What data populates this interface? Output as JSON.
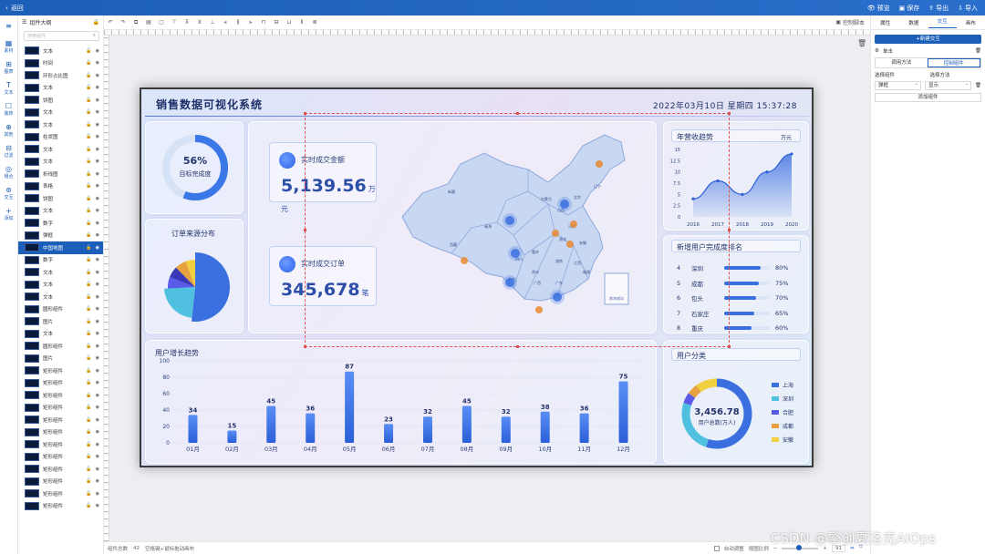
{
  "app": {
    "back_label": "返回",
    "tools": [
      "预览",
      "保存",
      "导出",
      "导入"
    ]
  },
  "leftnav": [
    {
      "icon": "≡",
      "label": ""
    },
    {
      "icon": "▦",
      "label": "素材"
    },
    {
      "icon": "⊞",
      "label": "图表"
    },
    {
      "icon": "T",
      "label": "文本"
    },
    {
      "icon": "☐",
      "label": "装饰"
    },
    {
      "icon": "⊕",
      "label": "其他"
    },
    {
      "icon": "⊟",
      "label": "过滤"
    },
    {
      "icon": "◎",
      "label": "组合"
    },
    {
      "icon": "⊛",
      "label": "交互"
    },
    {
      "icon": "+",
      "label": "添加"
    }
  ],
  "layers": {
    "title": "组件大纲",
    "search_placeholder": "搜索组件",
    "items": [
      "文本",
      "时间",
      "环形占比图",
      "文本",
      "饼图",
      "文本",
      "文本",
      "柱状图",
      "文本",
      "文本",
      "折线图",
      "表格",
      "饼图",
      "文本",
      "数字",
      "弹框",
      "中国地图",
      "数字",
      "文本",
      "文本",
      "文本",
      "圆形组件",
      "图片",
      "文本",
      "圆形组件",
      "图片",
      "矩形组件",
      "矩形组件",
      "矩形组件",
      "矩形组件",
      "矩形组件",
      "矩形组件",
      "矩形组件",
      "矩形组件",
      "矩形组件",
      "矩形组件",
      "矩形组件",
      "矩形组件"
    ],
    "selected_index": 16
  },
  "toolbar": {
    "script_label": "控制脚本"
  },
  "statusbar": {
    "count_label": "组件总数",
    "count": "42",
    "hint": "空格键+鼠标拖动画布",
    "auto_label": "自动调整",
    "zoom_label": "视图比例",
    "zoom": "91"
  },
  "rightpanel": {
    "tabs": [
      "属性",
      "数据",
      "交互",
      "画布"
    ],
    "active_tab": 2,
    "new_btn": "+新建交互",
    "event_label": "单击",
    "seg": [
      "调用方法",
      "控制组件"
    ],
    "seg_active": 1,
    "select_comp_label": "选择组件",
    "select_method_label": "选择方法",
    "select_comp_value": "弹框",
    "select_method_value": "显示",
    "add_btn": "添加组件"
  },
  "dash": {
    "title": "销售数据可视化系统",
    "datetime": "2022年03月10日 星期四 15:37:28",
    "ring": {
      "value": "56%",
      "label": "目标完成度",
      "pct": 0.56
    },
    "pie_title": "订单来源分布",
    "pie_slices": [
      {
        "v": 46,
        "c": "#3a6fe0"
      },
      {
        "v": 20,
        "c": "#4fc0e0"
      },
      {
        "v": 6,
        "c": "#5a5ae8"
      },
      {
        "v": 6,
        "c": "#3a3ab8"
      },
      {
        "v": 6,
        "c": "#e8a040"
      },
      {
        "v": 5,
        "c": "#f0d040"
      }
    ],
    "card1": {
      "label": "实时成交金额",
      "value": "5,139.56",
      "unit": "万元"
    },
    "card2": {
      "label": "实时成交订单",
      "value": "345,678",
      "unit": "笔"
    },
    "map_labels": [
      "新疆",
      "青海",
      "西藏",
      "四川",
      "内蒙古",
      "辽宁",
      "北京",
      "山西",
      "河南",
      "湖北",
      "湖南",
      "江西",
      "福建",
      "广东",
      "广西",
      "云南",
      "贵州",
      "重庆",
      "安徽",
      "南海诸岛"
    ],
    "trend": {
      "title": "年营收趋势",
      "unit": "万元",
      "x": [
        "2016",
        "2017",
        "2018",
        "2019",
        "2020"
      ],
      "y": [
        4,
        8,
        5,
        10,
        14
      ],
      "yticks": [
        "0",
        "2.5",
        "5",
        "7.5",
        "10",
        "12.5",
        "15"
      ],
      "ylim": [
        0,
        15
      ]
    },
    "rank": {
      "title": "新增用户完成度排名",
      "rows": [
        {
          "idx": "4",
          "name": "深圳",
          "pct": 80
        },
        {
          "idx": "5",
          "name": "成都",
          "pct": 75
        },
        {
          "idx": "6",
          "name": "包头",
          "pct": 70
        },
        {
          "idx": "7",
          "name": "石家庄",
          "pct": 65
        },
        {
          "idx": "8",
          "name": "重庆",
          "pct": 60
        }
      ]
    },
    "users": {
      "title": "用户增长趋势"
    },
    "category": {
      "title": "用户分类",
      "center_value": "3,456.78",
      "center_label": "用户总数(万人)",
      "legend": [
        {
          "name": "上海",
          "c": "#3a6fe0"
        },
        {
          "name": "深圳",
          "c": "#4fc0e0"
        },
        {
          "name": "合肥",
          "c": "#5a5ae8"
        },
        {
          "name": "成都",
          "c": "#e8a040"
        },
        {
          "name": "安徽",
          "c": "#f0d040"
        }
      ],
      "values": [
        55,
        25,
        5,
        5,
        10
      ]
    }
  },
  "chart_data": {
    "type": "bar",
    "title": "用户增长趋势",
    "categories": [
      "01月",
      "02月",
      "03月",
      "04月",
      "05月",
      "06月",
      "07月",
      "08月",
      "09月",
      "10月",
      "11月",
      "12月"
    ],
    "values": [
      34,
      15,
      45,
      36,
      87,
      23,
      32,
      45,
      32,
      38,
      36,
      75
    ],
    "ylim": [
      0,
      100
    ],
    "yticks": [
      "0",
      "20",
      "40",
      "60",
      "80",
      "100"
    ]
  },
  "watermark": "CSDN @擎创夏洛克AIOps"
}
